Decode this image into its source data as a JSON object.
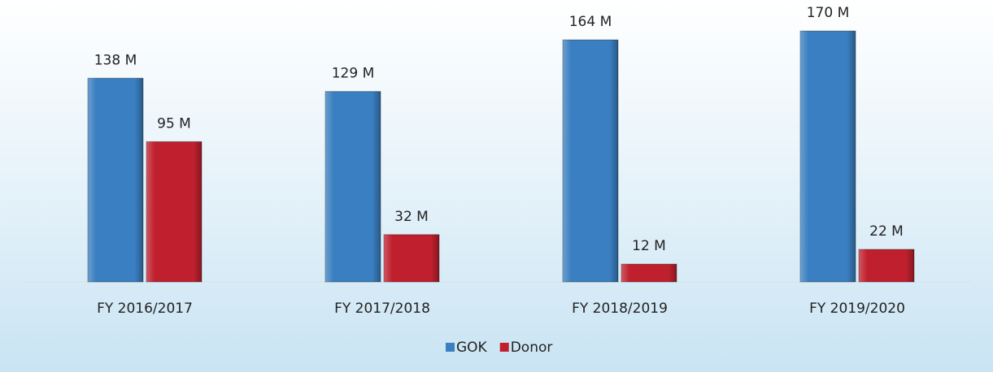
{
  "chart_data": {
    "type": "bar",
    "categories": [
      "FY 2016/2017",
      "FY 2017/2018",
      "FY 2018/2019",
      "FY 2019/2020"
    ],
    "series": [
      {
        "name": "GOK",
        "color": "#3a7fc1",
        "values": [
          138,
          129,
          164,
          170
        ],
        "value_labels": [
          "138 M",
          "129 M",
          "164 M",
          "170 M"
        ]
      },
      {
        "name": "Donor",
        "color": "#c0202e",
        "values": [
          95,
          32,
          12,
          22
        ],
        "value_labels": [
          "95 M",
          "32 M",
          "12 M",
          "22 M"
        ]
      }
    ],
    "ylim": [
      0,
      180
    ],
    "grid": false,
    "legend": "bottom"
  }
}
